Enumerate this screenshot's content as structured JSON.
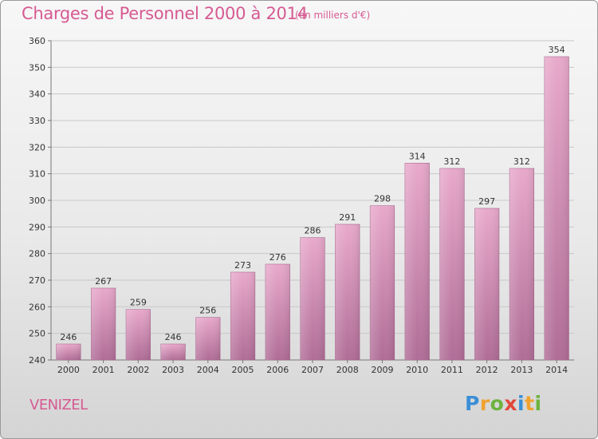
{
  "header": {
    "title": "Charges de Personnel 2000 à 2014",
    "subtitle": "(en milliers d'€)"
  },
  "footer": {
    "town": "VENIZEL",
    "logo_letters": [
      "P",
      "r",
      "o",
      "x",
      "i",
      "t",
      "i"
    ],
    "logo_colors": [
      "#3a8fd6",
      "#f0a22e",
      "#6cb33f",
      "#e2473b",
      "#3a8fd6",
      "#f0a22e",
      "#6cb33f"
    ]
  },
  "chart_data": {
    "type": "bar",
    "title": "Charges de Personnel 2000 à 2014",
    "subtitle": "(en milliers d'€)",
    "xlabel": "",
    "ylabel": "",
    "categories": [
      "2000",
      "2001",
      "2002",
      "2003",
      "2004",
      "2005",
      "2006",
      "2007",
      "2008",
      "2009",
      "2010",
      "2011",
      "2012",
      "2013",
      "2014"
    ],
    "values": [
      246,
      267,
      259,
      246,
      256,
      273,
      276,
      286,
      291,
      298,
      314,
      312,
      297,
      312,
      354
    ],
    "ylim": [
      240,
      360
    ],
    "yticks": [
      240,
      250,
      260,
      270,
      280,
      290,
      300,
      310,
      320,
      330,
      340,
      350,
      360
    ],
    "grid": true,
    "bar_color_top": "#e8a9cb",
    "bar_color_bottom": "#b06d97"
  }
}
